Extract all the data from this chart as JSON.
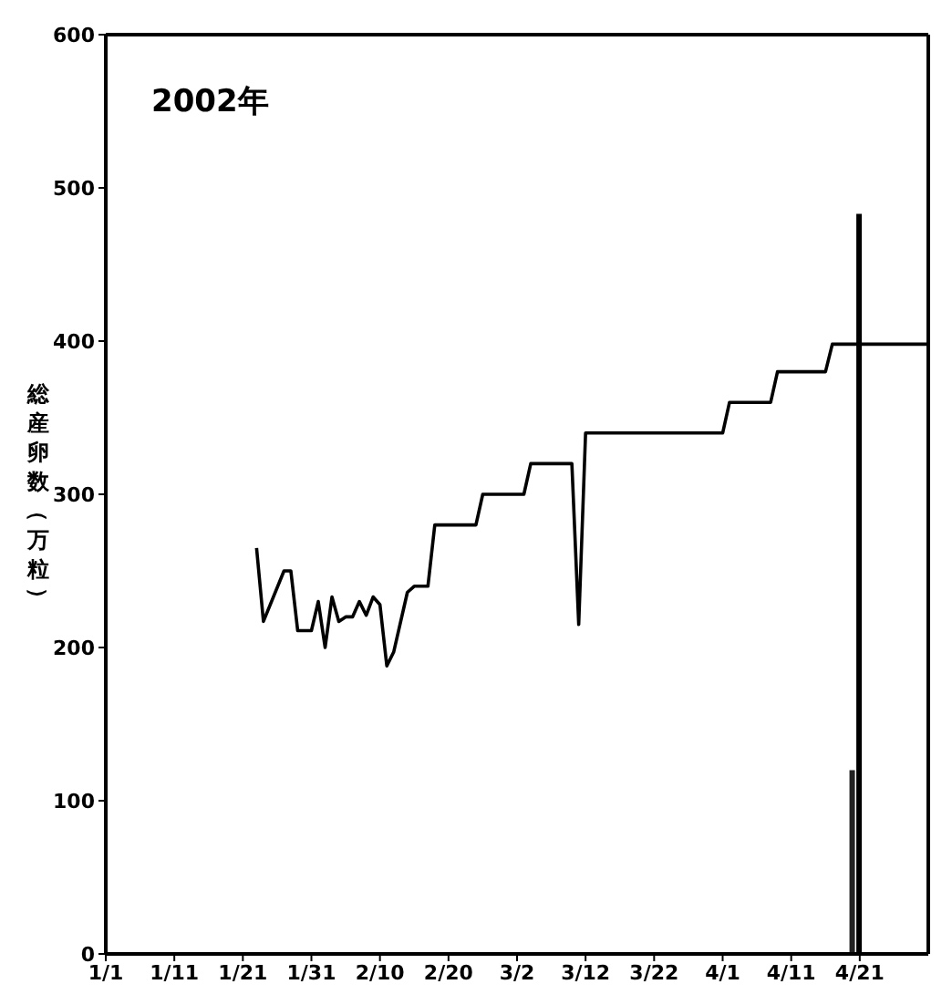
{
  "chart_data": {
    "type": "line",
    "title": "2002年",
    "ylabel": "総産卵数（万粒）",
    "xlim": [
      "2002-01-01",
      "2002-05-01"
    ],
    "xticks": [
      {
        "value": "2002-01-01",
        "label": "1/1"
      },
      {
        "value": "2002-01-11",
        "label": "1/11"
      },
      {
        "value": "2002-01-21",
        "label": "1/21"
      },
      {
        "value": "2002-01-31",
        "label": "1/31"
      },
      {
        "value": "2002-02-10",
        "label": "2/10"
      },
      {
        "value": "2002-02-20",
        "label": "2/20"
      },
      {
        "value": "2002-03-02",
        "label": "3/2"
      },
      {
        "value": "2002-03-12",
        "label": "3/12"
      },
      {
        "value": "2002-03-22",
        "label": "3/22"
      },
      {
        "value": "2002-04-01",
        "label": "4/1"
      },
      {
        "value": "2002-04-11",
        "label": "4/11"
      },
      {
        "value": "2002-04-21",
        "label": "4/21"
      }
    ],
    "ylim": [
      0,
      600
    ],
    "yticks": [
      0,
      100,
      200,
      300,
      400,
      500,
      600
    ],
    "marker": "none",
    "line_style": "solid",
    "series": [
      {
        "color": "#000000",
        "x": [
          "2002-01-23",
          "2002-01-24",
          "2002-01-27",
          "2002-01-28",
          "2002-01-29",
          "2002-01-31",
          "2002-02-01",
          "2002-02-02",
          "2002-02-03",
          "2002-02-04",
          "2002-02-05",
          "2002-02-06",
          "2002-02-07",
          "2002-02-08",
          "2002-02-09",
          "2002-02-10",
          "2002-02-11",
          "2002-02-12",
          "2002-02-14",
          "2002-02-15",
          "2002-02-17",
          "2002-02-18",
          "2002-02-24",
          "2002-02-25",
          "2002-03-03",
          "2002-03-04",
          "2002-03-10",
          "2002-03-11",
          "2002-03-12",
          "2002-04-01",
          "2002-04-02",
          "2002-04-08",
          "2002-04-09",
          "2002-04-16",
          "2002-04-17",
          "2002-05-01"
        ],
        "values": [
          265,
          217,
          250,
          250,
          211,
          211,
          230,
          200,
          233,
          217,
          220,
          220,
          230,
          221,
          233,
          228,
          188,
          197,
          236,
          240,
          240,
          280,
          280,
          300,
          300,
          320,
          320,
          215,
          340,
          340,
          360,
          360,
          380,
          380,
          398,
          398
        ]
      },
      {
        "type": "bar",
        "colors": [
          "#222222",
          "#000000"
        ],
        "x": [
          "2002-04-20",
          "2002-04-21"
        ],
        "values": [
          120,
          483
        ]
      }
    ]
  }
}
